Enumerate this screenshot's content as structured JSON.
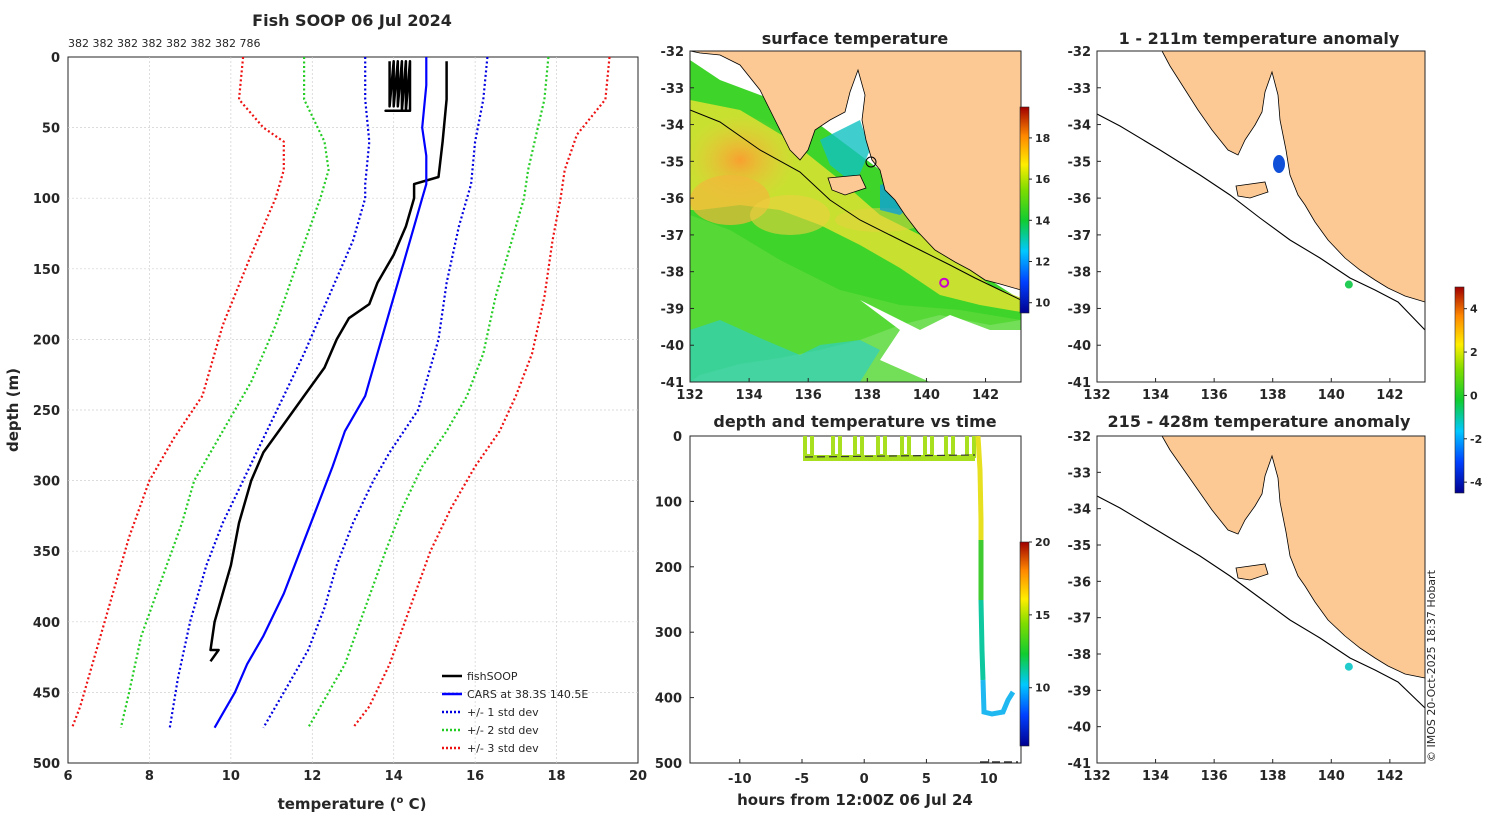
{
  "figure": {
    "copyright": "© IMOS 20-Oct-2025 18:37 Hobart",
    "colors": {
      "fishsoop": "#000000",
      "cars": "#0000ff",
      "std1": "#0000e0",
      "std2": "#22cc22",
      "std3": "#ee1111",
      "land": "#fcc995",
      "marker_sst": "#cc00cc",
      "marker_anom1": "#22cc55",
      "marker_anom2": "#22cccc"
    }
  },
  "chart_data": [
    {
      "id": "profile",
      "type": "line",
      "title": "Fish SOOP 06 Jul 2024",
      "counts_label": "382 382 382 382 382 382 382 786",
      "xlabel": "temperature (o C)",
      "xlabel_main": "temperature (",
      "xlabel_sup": "o",
      "xlabel_end": " C)",
      "ylabel": "depth (m)",
      "xlim": [
        6,
        20
      ],
      "ylim": [
        500,
        0
      ],
      "xticks": [
        "6",
        "8",
        "10",
        "12",
        "14",
        "16",
        "18",
        "20"
      ],
      "yticks": [
        "0",
        "50",
        "100",
        "150",
        "200",
        "250",
        "300",
        "350",
        "400",
        "450",
        "500"
      ],
      "legend": [
        "fishSOOP",
        "CARS at 38.3S 140.5E",
        "+/- 1 std dev",
        "+/- 2 std dev",
        "+/- 3 std dev"
      ],
      "legend_position": "bottom-right",
      "series": [
        {
          "name": "fishSOOP",
          "style": "solid",
          "points": [
            [
              15.3,
              3
            ],
            [
              15.3,
              30
            ],
            [
              15.2,
              60
            ],
            [
              15.1,
              85
            ],
            [
              14.5,
              90
            ],
            [
              14.5,
              100
            ],
            [
              14.3,
              120
            ],
            [
              14.0,
              140
            ],
            [
              13.6,
              160
            ],
            [
              13.4,
              175
            ],
            [
              12.9,
              185
            ],
            [
              12.6,
              200
            ],
            [
              12.3,
              220
            ],
            [
              11.8,
              240
            ],
            [
              11.3,
              260
            ],
            [
              10.8,
              280
            ],
            [
              10.5,
              300
            ],
            [
              10.2,
              330
            ],
            [
              10.0,
              360
            ],
            [
              9.8,
              380
            ],
            [
              9.6,
              400
            ],
            [
              9.5,
              420
            ],
            [
              9.7,
              420
            ],
            [
              9.5,
              428
            ]
          ]
        },
        {
          "name": "fishSOOP_surface",
          "style": "solid",
          "points": [
            [
              13.9,
              3
            ],
            [
              13.9,
              35
            ],
            [
              14.0,
              3
            ],
            [
              14.0,
              35
            ],
            [
              14.1,
              3
            ],
            [
              14.1,
              35
            ],
            [
              14.2,
              3
            ],
            [
              14.2,
              38
            ],
            [
              14.3,
              3
            ],
            [
              14.3,
              38
            ],
            [
              14.4,
              3
            ],
            [
              14.4,
              38
            ],
            [
              13.8,
              38
            ],
            [
              14.3,
              38
            ]
          ]
        },
        {
          "name": "CARS",
          "style": "solid",
          "points": [
            [
              14.8,
              0
            ],
            [
              14.8,
              20
            ],
            [
              14.7,
              50
            ],
            [
              14.8,
              70
            ],
            [
              14.8,
              90
            ],
            [
              14.7,
              100
            ],
            [
              14.5,
              120
            ],
            [
              14.2,
              150
            ],
            [
              13.9,
              180
            ],
            [
              13.6,
              210
            ],
            [
              13.3,
              240
            ],
            [
              12.8,
              265
            ],
            [
              12.5,
              290
            ],
            [
              12.1,
              320
            ],
            [
              11.7,
              350
            ],
            [
              11.3,
              380
            ],
            [
              10.8,
              410
            ],
            [
              10.4,
              430
            ],
            [
              10.1,
              450
            ],
            [
              9.8,
              465
            ],
            [
              9.6,
              475
            ]
          ]
        },
        {
          "name": "+1 std",
          "style": "dot",
          "points": [
            [
              16.3,
              0
            ],
            [
              16.2,
              30
            ],
            [
              16.0,
              60
            ],
            [
              15.9,
              90
            ],
            [
              15.6,
              120
            ],
            [
              15.3,
              160
            ],
            [
              15.1,
              200
            ],
            [
              14.6,
              250
            ],
            [
              13.9,
              280
            ],
            [
              13.5,
              300
            ],
            [
              13.0,
              330
            ],
            [
              12.6,
              360
            ],
            [
              12.3,
              390
            ],
            [
              11.9,
              420
            ],
            [
              11.4,
              445
            ],
            [
              10.8,
              475
            ]
          ]
        },
        {
          "name": "-1 std",
          "style": "dot",
          "points": [
            [
              13.3,
              0
            ],
            [
              13.3,
              30
            ],
            [
              13.4,
              60
            ],
            [
              13.3,
              90
            ],
            [
              13.3,
              100
            ],
            [
              13.0,
              130
            ],
            [
              12.4,
              170
            ],
            [
              11.8,
              210
            ],
            [
              11.3,
              240
            ],
            [
              10.8,
              270
            ],
            [
              10.3,
              300
            ],
            [
              9.8,
              330
            ],
            [
              9.4,
              360
            ],
            [
              9.0,
              400
            ],
            [
              8.7,
              440
            ],
            [
              8.5,
              475
            ]
          ]
        },
        {
          "name": "+2 std",
          "style": "dot",
          "points": [
            [
              17.8,
              0
            ],
            [
              17.7,
              30
            ],
            [
              17.5,
              55
            ],
            [
              17.3,
              80
            ],
            [
              17.2,
              100
            ],
            [
              16.9,
              130
            ],
            [
              16.5,
              170
            ],
            [
              16.2,
              210
            ],
            [
              15.8,
              240
            ],
            [
              15.3,
              265
            ],
            [
              14.7,
              290
            ],
            [
              14.2,
              320
            ],
            [
              13.8,
              350
            ],
            [
              13.3,
              390
            ],
            [
              12.8,
              430
            ],
            [
              12.4,
              450
            ],
            [
              11.9,
              475
            ]
          ]
        },
        {
          "name": "-2 std",
          "style": "dot",
          "points": [
            [
              11.8,
              0
            ],
            [
              11.8,
              30
            ],
            [
              12.3,
              60
            ],
            [
              12.4,
              80
            ],
            [
              12.2,
              100
            ],
            [
              11.7,
              140
            ],
            [
              11.1,
              190
            ],
            [
              10.5,
              230
            ],
            [
              9.9,
              260
            ],
            [
              9.5,
              280
            ],
            [
              9.1,
              300
            ],
            [
              8.8,
              330
            ],
            [
              8.3,
              370
            ],
            [
              7.8,
              410
            ],
            [
              7.5,
              450
            ],
            [
              7.3,
              475
            ]
          ]
        },
        {
          "name": "+3 std",
          "style": "dot",
          "points": [
            [
              19.3,
              0
            ],
            [
              19.2,
              30
            ],
            [
              18.5,
              55
            ],
            [
              18.2,
              80
            ],
            [
              18.1,
              100
            ],
            [
              17.9,
              130
            ],
            [
              17.7,
              170
            ],
            [
              17.4,
              210
            ],
            [
              17.0,
              240
            ],
            [
              16.6,
              265
            ],
            [
              16.0,
              290
            ],
            [
              15.4,
              320
            ],
            [
              14.9,
              350
            ],
            [
              14.4,
              390
            ],
            [
              13.9,
              430
            ],
            [
              13.4,
              460
            ],
            [
              13.0,
              475
            ]
          ]
        },
        {
          "name": "-3 std",
          "style": "dot",
          "points": [
            [
              10.3,
              0
            ],
            [
              10.2,
              30
            ],
            [
              10.8,
              50
            ],
            [
              11.3,
              60
            ],
            [
              11.3,
              80
            ],
            [
              11.1,
              100
            ],
            [
              10.5,
              140
            ],
            [
              9.8,
              190
            ],
            [
              9.3,
              240
            ],
            [
              8.6,
              270
            ],
            [
              8.0,
              300
            ],
            [
              7.5,
              340
            ],
            [
              7.0,
              390
            ],
            [
              6.6,
              430
            ],
            [
              6.3,
              460
            ],
            [
              6.1,
              475
            ]
          ]
        }
      ]
    },
    {
      "id": "sst_map",
      "type": "heatmap",
      "title": "surface temperature",
      "xticks": [
        "132",
        "134",
        "136",
        "138",
        "140",
        "142"
      ],
      "yticks": [
        "-32",
        "-33",
        "-34",
        "-35",
        "-36",
        "-37",
        "-38",
        "-39",
        "-40",
        "-41"
      ],
      "xlim": [
        132,
        143.2
      ],
      "ylim": [
        -41,
        -32
      ],
      "colorbar_ticks": [
        "10",
        "12",
        "14",
        "16",
        "18"
      ],
      "colorbar_range": [
        9.5,
        19.5
      ],
      "marker": {
        "lon": 140.6,
        "lat": -38.3
      }
    },
    {
      "id": "depth_time",
      "type": "scatter",
      "title": "depth and temperature vs time",
      "xlabel": "hours from 12:00Z 06 Jul 24",
      "xticks": [
        "-10",
        "-5",
        "0",
        "5",
        "10"
      ],
      "yticks": [
        "0",
        "100",
        "200",
        "300",
        "400",
        "500"
      ],
      "xlim": [
        -14,
        12.6
      ],
      "ylim": [
        500,
        0
      ],
      "colorbar_ticks": [
        "10",
        "15",
        "20"
      ],
      "colorbar_range": [
        6,
        20
      ]
    },
    {
      "id": "anom1",
      "type": "heatmap",
      "title": "1 - 211m temperature anomaly",
      "xticks": [
        "132",
        "134",
        "136",
        "138",
        "140",
        "142"
      ],
      "yticks": [
        "-32",
        "-33",
        "-34",
        "-35",
        "-36",
        "-37",
        "-38",
        "-39",
        "-40",
        "-41"
      ],
      "xlim": [
        132,
        143.2
      ],
      "ylim": [
        -41,
        -32
      ],
      "marker": {
        "lon": 140.6,
        "lat": -38.35
      }
    },
    {
      "id": "anom2",
      "type": "heatmap",
      "title": "215 - 428m temperature anomaly",
      "xticks": [
        "132",
        "134",
        "136",
        "138",
        "140",
        "142"
      ],
      "yticks": [
        "-32",
        "-33",
        "-34",
        "-35",
        "-36",
        "-37",
        "-38",
        "-39",
        "-40",
        "-41"
      ],
      "xlim": [
        132,
        143.2
      ],
      "ylim": [
        -41,
        -32
      ],
      "marker": {
        "lon": 140.6,
        "lat": -38.35
      }
    },
    {
      "id": "anomaly_colorbar",
      "type": "heatmap",
      "colorbar_ticks": [
        "4",
        "2",
        "0",
        "-2",
        "-4"
      ],
      "colorbar_range": [
        -4.5,
        5
      ]
    }
  ]
}
